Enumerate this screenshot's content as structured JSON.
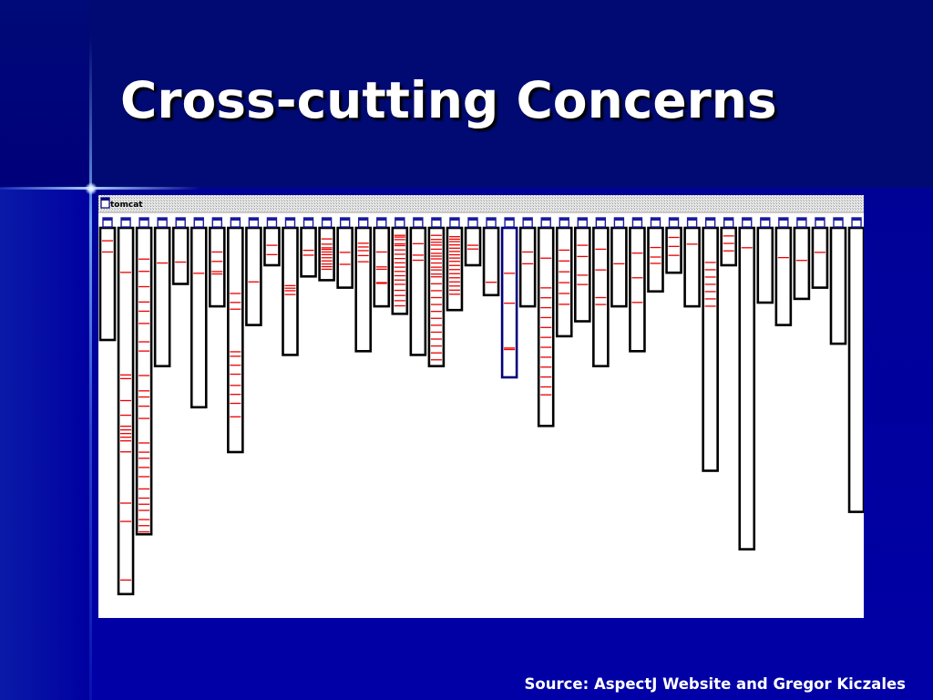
{
  "slide": {
    "title": "Cross-cutting Concerns",
    "source": "Source: AspectJ Website and Gregor Kiczales"
  },
  "diagram": {
    "window_label": "tomcat",
    "window_icon": "window-icon",
    "package_icon": "package-icon",
    "colors": {
      "slide_background": "#00009a",
      "concern_mark": "#ee0000",
      "bar_border": "#000000",
      "highlight_border": "#00007a",
      "panel": "#ffffff"
    },
    "highlighted_bar_index": 22,
    "bars": [
      {
        "length": 0.3,
        "marks": [
          0.11,
          0.21
        ]
      },
      {
        "length": 0.98,
        "marks": [
          0.12,
          0.4,
          0.41,
          0.47,
          0.51,
          0.54,
          0.55,
          0.56,
          0.57,
          0.58,
          0.61,
          0.75,
          0.8,
          0.96
        ]
      },
      {
        "length": 0.82,
        "marks": [
          0.1,
          0.14,
          0.19,
          0.24,
          0.27,
          0.31,
          0.37,
          0.4,
          0.48,
          0.53,
          0.55,
          0.58,
          0.62,
          0.7,
          0.73,
          0.75,
          0.78,
          0.81,
          0.85,
          0.88,
          0.9,
          0.92,
          0.95,
          0.97,
          0.99
        ]
      },
      {
        "length": 0.37,
        "marks": [
          0.25
        ]
      },
      {
        "length": 0.15,
        "marks": [
          0.6
        ]
      },
      {
        "length": 0.48,
        "marks": [
          0.25
        ]
      },
      {
        "length": 0.21,
        "marks": [
          0.3,
          0.42,
          0.55,
          0.58
        ]
      },
      {
        "length": 0.6,
        "marks": [
          0.29,
          0.33,
          0.36,
          0.55,
          0.57,
          0.61,
          0.65,
          0.7,
          0.74,
          0.78,
          0.84
        ]
      },
      {
        "length": 0.26,
        "marks": [
          0.55
        ]
      },
      {
        "length": 0.1,
        "marks": [
          0.45,
          0.7
        ]
      },
      {
        "length": 0.34,
        "marks": [
          0.45,
          0.47,
          0.49,
          0.52
        ]
      },
      {
        "length": 0.13,
        "marks": [
          0.45,
          0.55
        ]
      },
      {
        "length": 0.14,
        "marks": [
          0.2,
          0.3,
          0.37,
          0.4,
          0.45,
          0.5,
          0.56,
          0.62,
          0.68,
          0.73,
          0.78
        ]
      },
      {
        "length": 0.16,
        "marks": [
          0.4,
          0.6
        ]
      },
      {
        "length": 0.33,
        "marks": [
          0.12,
          0.15,
          0.18,
          0.22,
          0.27
        ]
      },
      {
        "length": 0.21,
        "marks": [
          0.3,
          0.49,
          0.52,
          0.69,
          0.7
        ]
      },
      {
        "length": 0.23,
        "marks": [
          0.08,
          0.1,
          0.13,
          0.18,
          0.2,
          0.25,
          0.3,
          0.35,
          0.4,
          0.45,
          0.5,
          0.55,
          0.6,
          0.65,
          0.72,
          0.78,
          0.84,
          0.9
        ]
      },
      {
        "length": 0.34,
        "marks": [
          0.12,
          0.21,
          0.25
        ]
      },
      {
        "length": 0.37,
        "marks": [
          0.05,
          0.08,
          0.1,
          0.12,
          0.15,
          0.18,
          0.2,
          0.22,
          0.25,
          0.28,
          0.3,
          0.33,
          0.35,
          0.4,
          0.45,
          0.5,
          0.55,
          0.6,
          0.65,
          0.7,
          0.75,
          0.8,
          0.85,
          0.9,
          0.95
        ]
      },
      {
        "length": 0.22,
        "marks": [
          0.1,
          0.13,
          0.16,
          0.2,
          0.24,
          0.28,
          0.32,
          0.36,
          0.4,
          0.45,
          0.5,
          0.55,
          0.6,
          0.65,
          0.7,
          0.75,
          0.8
        ]
      },
      {
        "length": 0.1,
        "marks": [
          0.45,
          0.55
        ]
      },
      {
        "length": 0.18,
        "marks": [
          0.8
        ]
      },
      {
        "length": 0.4,
        "marks": [
          0.3,
          0.5,
          0.8,
          0.81
        ]
      },
      {
        "length": 0.21,
        "marks": [
          0.3,
          0.45
        ]
      },
      {
        "length": 0.53,
        "marks": [
          0.15,
          0.3,
          0.35,
          0.4,
          0.45,
          0.5,
          0.55,
          0.6,
          0.65,
          0.7,
          0.75,
          0.8,
          0.84
        ]
      },
      {
        "length": 0.29,
        "marks": [
          0.2,
          0.3,
          0.4,
          0.5,
          0.6,
          0.7
        ]
      },
      {
        "length": 0.25,
        "marks": [
          0.18,
          0.3,
          0.5,
          0.6
        ]
      },
      {
        "length": 0.37,
        "marks": [
          0.15,
          0.3,
          0.5,
          0.55
        ]
      },
      {
        "length": 0.21,
        "marks": [
          0.45
        ]
      },
      {
        "length": 0.33,
        "marks": [
          0.2,
          0.4,
          0.6
        ]
      },
      {
        "length": 0.17,
        "marks": [
          0.3,
          0.45,
          0.55
        ]
      },
      {
        "length": 0.12,
        "marks": [
          0.2,
          0.4,
          0.6
        ]
      },
      {
        "length": 0.21,
        "marks": [
          0.2
        ]
      },
      {
        "length": 0.65,
        "marks": [
          0.14,
          0.17,
          0.2,
          0.23,
          0.26,
          0.29,
          0.32
        ]
      },
      {
        "length": 0.1,
        "marks": [
          0.2,
          0.4,
          0.6
        ]
      },
      {
        "length": 0.86,
        "marks": [
          0.06
        ]
      },
      {
        "length": 0.2,
        "marks": []
      },
      {
        "length": 0.26,
        "marks": [
          0.3
        ]
      },
      {
        "length": 0.19,
        "marks": [
          0.45
        ]
      },
      {
        "length": 0.16,
        "marks": [
          0.4
        ]
      },
      {
        "length": 0.31,
        "marks": []
      },
      {
        "length": 0.76,
        "marks": []
      }
    ]
  }
}
